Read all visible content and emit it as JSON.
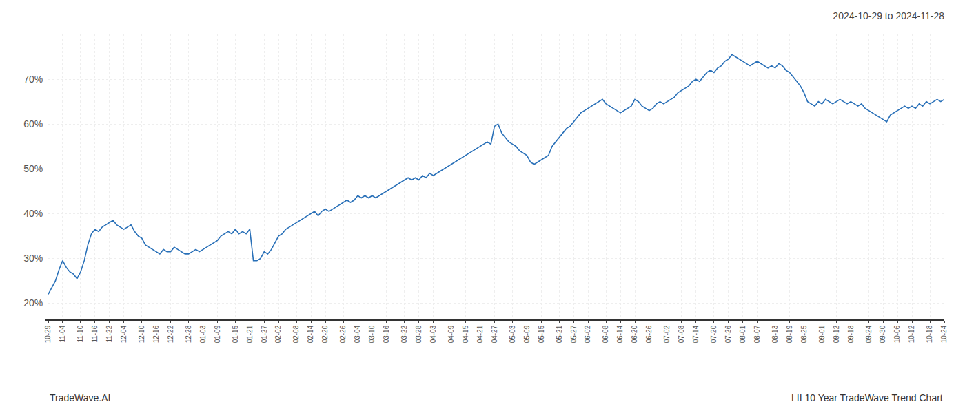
{
  "chart_data": {
    "type": "line",
    "title": "2024-10-29 to 2024-11-28",
    "annotations": [
      "TradeWave.AI",
      "LII 10 Year TradeWave Trend Chart"
    ],
    "color": "#2970b8",
    "grid": true,
    "line_style": "solid",
    "ylim": [
      17,
      80
    ],
    "yticks": [
      {
        "value": 20,
        "label": "20%"
      },
      {
        "value": 30,
        "label": "30%"
      },
      {
        "value": 40,
        "label": "40%"
      },
      {
        "value": 50,
        "label": "50%"
      },
      {
        "value": 60,
        "label": "60%"
      },
      {
        "value": 70,
        "label": "70%"
      }
    ],
    "categories": [
      "10-29",
      null,
      null,
      null,
      "11-04",
      null,
      null,
      null,
      null,
      "11-10",
      null,
      null,
      null,
      "11-16",
      null,
      null,
      null,
      "11-22",
      null,
      null,
      null,
      "12-04",
      null,
      null,
      null,
      null,
      "12-10",
      null,
      null,
      null,
      "12-16",
      null,
      null,
      null,
      "12-22",
      null,
      null,
      null,
      null,
      "12-28",
      null,
      null,
      null,
      "01-03",
      null,
      null,
      null,
      "01-09",
      null,
      null,
      null,
      null,
      "01-15",
      null,
      null,
      null,
      "01-21",
      null,
      null,
      null,
      "01-27",
      null,
      null,
      null,
      "02-02",
      null,
      null,
      null,
      null,
      "02-08",
      null,
      null,
      null,
      "02-14",
      null,
      null,
      null,
      "02-20",
      null,
      null,
      null,
      null,
      "02-26",
      null,
      null,
      null,
      "03-04",
      null,
      null,
      null,
      "03-10",
      null,
      null,
      null,
      "03-16",
      null,
      null,
      null,
      null,
      "03-22",
      null,
      null,
      null,
      "03-28",
      null,
      null,
      null,
      "04-03",
      null,
      null,
      null,
      null,
      "04-09",
      null,
      null,
      null,
      "04-15",
      null,
      null,
      null,
      "04-21",
      null,
      null,
      null,
      "04-27",
      null,
      null,
      null,
      null,
      "05-03",
      null,
      null,
      null,
      "05-09",
      null,
      null,
      null,
      "05-15",
      null,
      null,
      null,
      null,
      "05-21",
      null,
      null,
      null,
      "05-27",
      null,
      null,
      null,
      "06-02",
      null,
      null,
      null,
      null,
      "06-08",
      null,
      null,
      null,
      "06-14",
      null,
      null,
      null,
      "06-20",
      null,
      null,
      null,
      "06-26",
      null,
      null,
      null,
      null,
      "07-02",
      null,
      null,
      null,
      "07-08",
      null,
      null,
      null,
      "07-14",
      null,
      null,
      null,
      null,
      "07-20",
      null,
      null,
      null,
      "07-26",
      null,
      null,
      null,
      "08-01",
      null,
      null,
      null,
      "08-07",
      null,
      null,
      null,
      null,
      "08-13",
      null,
      null,
      null,
      "08-19",
      null,
      null,
      null,
      "08-25",
      null,
      null,
      null,
      null,
      "09-01",
      null,
      null,
      null,
      "09-12",
      null,
      null,
      null,
      "09-18",
      null,
      null,
      null,
      null,
      "09-24",
      null,
      null,
      null,
      "09-30",
      null,
      null,
      null,
      "10-06",
      null,
      null,
      null,
      "10-12",
      null,
      null,
      null,
      null,
      "10-18",
      null,
      null,
      null,
      "10-24"
    ],
    "values": [
      22.0,
      23.5,
      25.0,
      27.5,
      29.5,
      28.0,
      27.0,
      26.5,
      25.5,
      27.0,
      29.5,
      33.0,
      35.5,
      36.5,
      36.0,
      37.0,
      37.5,
      38.0,
      38.5,
      37.5,
      37.0,
      36.5,
      37.0,
      37.5,
      36.0,
      35.0,
      34.5,
      33.0,
      32.5,
      32.0,
      31.5,
      31.0,
      32.0,
      31.5,
      31.5,
      32.5,
      32.0,
      31.5,
      31.0,
      31.0,
      31.5,
      32.0,
      31.5,
      32.0,
      32.5,
      33.0,
      33.5,
      34.0,
      35.0,
      35.5,
      36.0,
      35.5,
      36.5,
      35.5,
      36.0,
      35.5,
      36.5,
      29.5,
      29.5,
      30.0,
      31.5,
      31.0,
      32.0,
      33.5,
      35.0,
      35.5,
      36.5,
      37.0,
      37.5,
      38.0,
      38.5,
      39.0,
      39.5,
      40.0,
      40.5,
      39.5,
      40.5,
      41.0,
      40.5,
      41.0,
      41.5,
      42.0,
      42.5,
      43.0,
      42.5,
      43.0,
      44.0,
      43.5,
      44.0,
      43.5,
      44.0,
      43.5,
      44.0,
      44.5,
      45.0,
      45.5,
      46.0,
      46.5,
      47.0,
      47.5,
      48.0,
      47.5,
      48.0,
      47.5,
      48.5,
      48.0,
      49.0,
      48.5,
      49.0,
      49.5,
      50.0,
      50.5,
      51.0,
      51.5,
      52.0,
      52.5,
      53.0,
      53.5,
      54.0,
      54.5,
      55.0,
      55.5,
      56.0,
      55.5,
      59.5,
      60.0,
      58.0,
      57.0,
      56.0,
      55.5,
      55.0,
      54.0,
      53.5,
      53.0,
      51.5,
      51.0,
      51.5,
      52.0,
      52.5,
      53.0,
      55.0,
      56.0,
      57.0,
      58.0,
      59.0,
      59.5,
      60.5,
      61.5,
      62.5,
      63.0,
      63.5,
      64.0,
      64.5,
      65.0,
      65.5,
      64.5,
      64.0,
      63.5,
      63.0,
      62.5,
      63.0,
      63.5,
      64.0,
      65.5,
      65.0,
      64.0,
      63.5,
      63.0,
      63.5,
      64.5,
      65.0,
      64.5,
      65.0,
      65.5,
      66.0,
      67.0,
      67.5,
      68.0,
      68.5,
      69.5,
      70.0,
      69.5,
      70.5,
      71.5,
      72.0,
      71.5,
      72.5,
      73.0,
      74.0,
      74.5,
      75.5,
      75.0,
      74.5,
      74.0,
      73.5,
      73.0,
      73.5,
      74.0,
      73.5,
      73.0,
      72.5,
      73.0,
      72.5,
      73.5,
      73.0,
      72.0,
      71.5,
      70.5,
      69.5,
      68.5,
      67.0,
      65.0,
      64.5,
      64.0,
      65.0,
      64.5,
      65.5,
      65.0,
      64.5,
      65.0,
      65.5,
      65.0,
      64.5,
      65.0,
      64.5,
      64.0,
      64.5,
      63.5,
      63.0,
      62.5,
      62.0,
      61.5,
      61.0,
      60.5,
      62.0,
      62.5,
      63.0,
      63.5,
      64.0,
      63.5,
      64.0,
      63.5,
      64.5,
      64.0,
      65.0,
      64.5,
      65.0,
      65.5,
      65.0,
      65.5
    ]
  }
}
